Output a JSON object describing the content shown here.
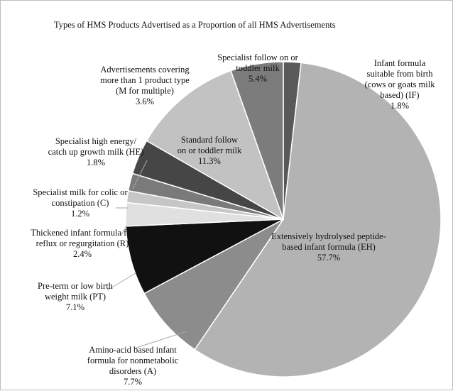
{
  "chart_data": {
    "type": "pie",
    "title": "Types of HMS Products Advertised as a Proportion of all HMS Advertisements",
    "slices": [
      {
        "label": [
          "Infant formula",
          "suitable from birth",
          "(cows or goats milk",
          "based) (IF)"
        ],
        "value": 1.8,
        "value_label": "1.8%",
        "color": "#595959"
      },
      {
        "label": [
          "Extensively hydrolysed peptide-",
          "based infant formula (EH)"
        ],
        "value": 57.7,
        "value_label": "57.7%",
        "color": "#b3b3b3"
      },
      {
        "label": [
          "Amino-acid based infant",
          "formula for nonmetabolic",
          "disorders (A)"
        ],
        "value": 7.7,
        "value_label": "7.7%",
        "color": "#8c8c8c"
      },
      {
        "label": [
          "Pre-term or low birth",
          "weight milk (PT)"
        ],
        "value": 7.1,
        "value_label": "7.1%",
        "color": "#111111"
      },
      {
        "label": [
          "Thickened infant formula for",
          "reflux or regurgitation (R)"
        ],
        "value": 2.4,
        "value_label": "2.4%",
        "color": "#e0e0e0"
      },
      {
        "label": [
          "Specialist milk for colic or",
          "constipation (C)"
        ],
        "value": 1.2,
        "value_label": "1.2%",
        "color": "#c6c6c6"
      },
      {
        "label": [
          "Specialist high energy/",
          "catch up growth milk (HE)"
        ],
        "value": 1.8,
        "value_label": "1.8%",
        "color": "#7a7a7a"
      },
      {
        "label": [
          "Advertisements covering",
          "more than 1 product type",
          "(M for multiple)"
        ],
        "value": 3.6,
        "value_label": "3.6%",
        "color": "#464646"
      },
      {
        "label": [
          "Standard follow",
          "on or toddler milk"
        ],
        "value": 11.3,
        "value_label": "11.3%",
        "color": "#c2c2c2"
      },
      {
        "label": [
          "Specialist follow on or",
          "toddler milk"
        ],
        "value": 5.4,
        "value_label": "5.4%",
        "color": "#7c7c7c"
      }
    ],
    "legend": "none",
    "start_angle": "top, clockwise"
  }
}
